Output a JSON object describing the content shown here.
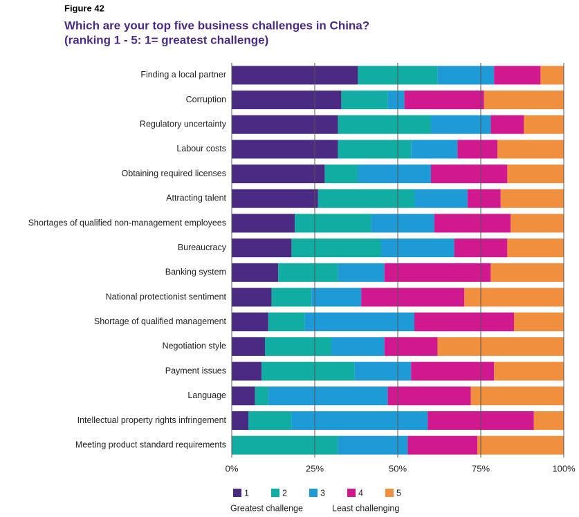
{
  "chart_data": {
    "type": "stacked-barh",
    "figure_label": "Figure 42",
    "title": "Which are your top five business challenges in China?",
    "subtitle": "(ranking 1 - 5: 1= greatest challenge)",
    "categories": [
      "Finding a local partner",
      "Corruption",
      "Regulatory uncertainty",
      "Labour costs",
      "Obtaining required licenses",
      "Attracting talent",
      "Shortages of qualified non-management employees",
      "Bureaucracy",
      "Banking system",
      "National protectionist sentiment",
      "Shortage of qualified management",
      "Negotiation style",
      "Payment issues",
      "Language",
      "Intellectual property rights infringement",
      "Meeting product standard requirements"
    ],
    "series": [
      {
        "name": "1",
        "color": "#4b2a84",
        "values": [
          38,
          33,
          32,
          32,
          28,
          26,
          19,
          18,
          14,
          12,
          11,
          10,
          9,
          7,
          5,
          0
        ]
      },
      {
        "name": "2",
        "color": "#12ada2",
        "values": [
          24,
          14,
          28,
          22,
          10,
          29,
          23,
          27,
          18,
          12,
          11,
          20,
          28,
          4,
          13,
          32
        ]
      },
      {
        "name": "3",
        "color": "#1e9ad6",
        "values": [
          17,
          5,
          18,
          14,
          22,
          16,
          19,
          22,
          14,
          15,
          33,
          16,
          17,
          36,
          41,
          21
        ]
      },
      {
        "name": "4",
        "color": "#d0198f",
        "values": [
          14,
          24,
          10,
          12,
          23,
          10,
          23,
          16,
          32,
          31,
          30,
          16,
          25,
          25,
          32,
          21
        ]
      },
      {
        "name": "5",
        "color": "#f0903f",
        "values": [
          7,
          24,
          12,
          20,
          17,
          19,
          16,
          17,
          22,
          30,
          15,
          38,
          21,
          28,
          9,
          26
        ]
      }
    ],
    "legend_caption_left": "Greatest challenge",
    "legend_caption_right": "Least challenging",
    "xlim": [
      0,
      100
    ],
    "xticks": [
      {
        "value": 0,
        "label": "0%"
      },
      {
        "value": 25,
        "label": "25%"
      },
      {
        "value": 50,
        "label": "50%"
      },
      {
        "value": 75,
        "label": "75%"
      },
      {
        "value": 100,
        "label": "100%"
      }
    ],
    "grid": true
  }
}
